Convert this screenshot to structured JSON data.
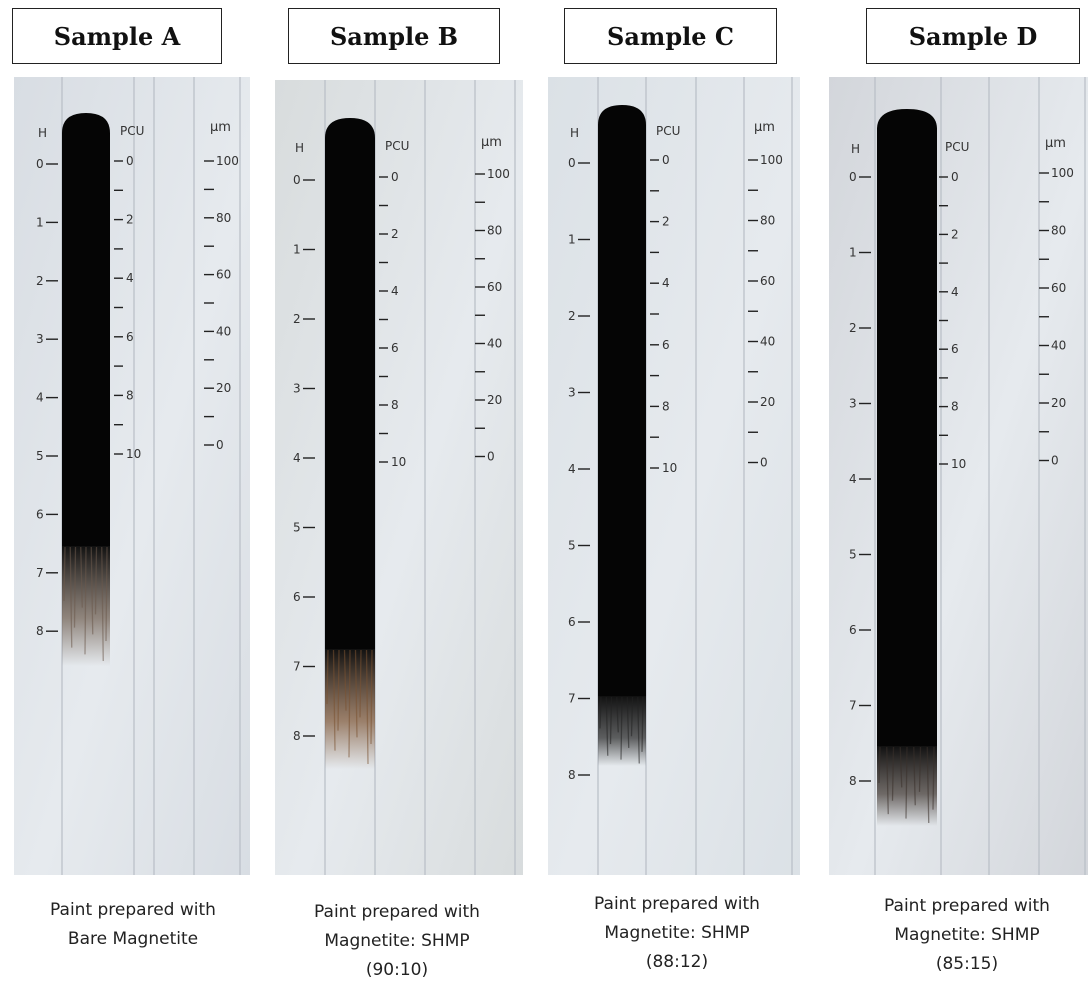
{
  "samples": [
    {
      "title": "Sample A",
      "caption": [
        "Paint prepared with",
        "Bare Magnetite"
      ],
      "scale_headers": {
        "h": "H",
        "pcu": "PCU",
        "um": "μm"
      },
      "h_labels": [
        "0",
        "1",
        "2",
        "3",
        "4",
        "5",
        "6",
        "7",
        "8"
      ],
      "pcu_labels": [
        "0",
        "2",
        "4",
        "6",
        "8",
        "10"
      ],
      "um_labels": [
        "100",
        "80",
        "60",
        "40",
        "20",
        "0"
      ]
    },
    {
      "title": "Sample B",
      "caption": [
        "Paint prepared with",
        "Magnetite: SHMP",
        "(90:10)"
      ],
      "scale_headers": {
        "h": "H",
        "pcu": "PCU",
        "um": "μm"
      },
      "h_labels": [
        "0",
        "1",
        "2",
        "3",
        "4",
        "5",
        "6",
        "7",
        "8"
      ],
      "pcu_labels": [
        "0",
        "2",
        "4",
        "6",
        "8",
        "10"
      ],
      "um_labels": [
        "100",
        "80",
        "60",
        "40",
        "20",
        "0"
      ]
    },
    {
      "title": "Sample C",
      "caption": [
        "Paint prepared with",
        "Magnetite: SHMP",
        "(88:12)"
      ],
      "scale_headers": {
        "h": "H",
        "pcu": "PCU",
        "um": "μm"
      },
      "h_labels": [
        "0",
        "1",
        "2",
        "3",
        "4",
        "5",
        "6",
        "7",
        "8"
      ],
      "pcu_labels": [
        "0",
        "2",
        "4",
        "6",
        "8",
        "10"
      ],
      "um_labels": [
        "100",
        "80",
        "60",
        "40",
        "20",
        "0"
      ]
    },
    {
      "title": "Sample D",
      "caption": [
        "Paint prepared with",
        "Magnetite: SHMP",
        "(85:15)"
      ],
      "scale_headers": {
        "h": "H",
        "pcu": "PCU",
        "um": "μm"
      },
      "h_labels": [
        "0",
        "1",
        "2",
        "3",
        "4",
        "5",
        "6",
        "7",
        "8"
      ],
      "pcu_labels": [
        "0",
        "2",
        "4",
        "6",
        "8",
        "10"
      ],
      "um_labels": [
        "100",
        "80",
        "60",
        "40",
        "20",
        "0"
      ]
    }
  ]
}
